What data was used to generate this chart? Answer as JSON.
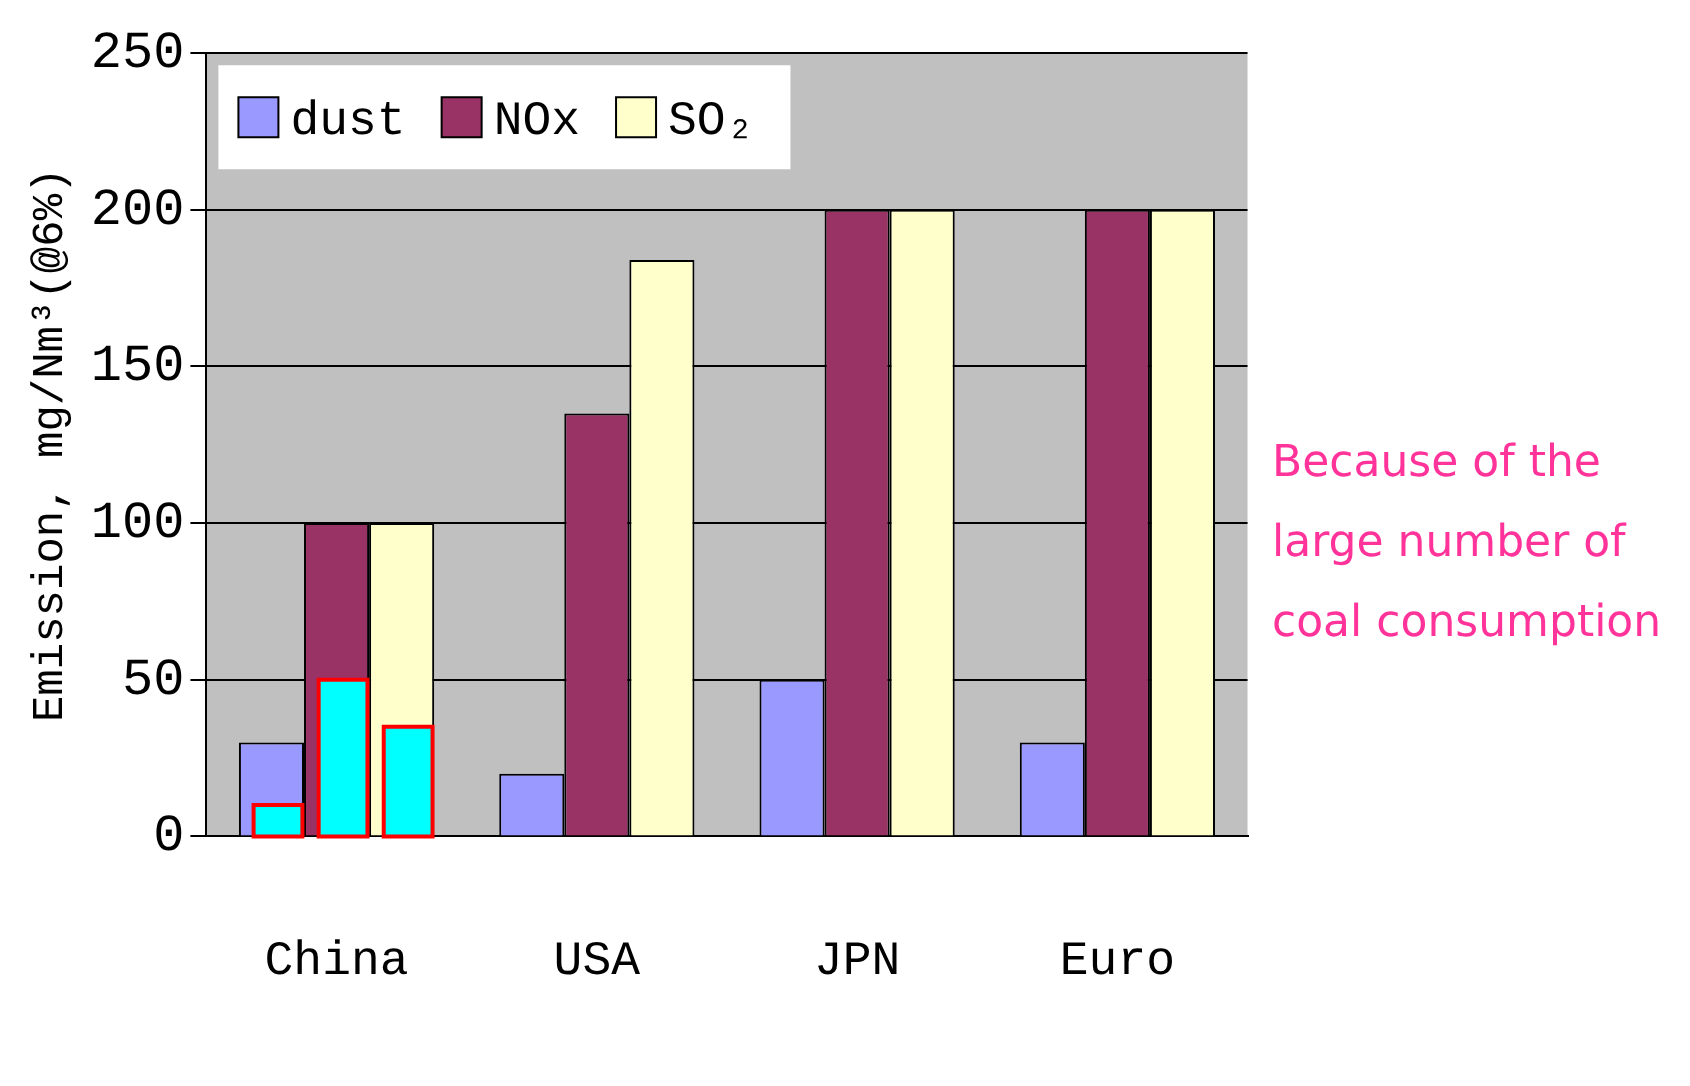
{
  "chart_data": {
    "type": "bar",
    "categories": [
      "China",
      "USA",
      "JPN",
      "Euro"
    ],
    "ylabel": "Emission, mg/Nm³(@6%)",
    "ylim": [
      0,
      250
    ],
    "yticks": [
      0,
      50,
      100,
      150,
      200,
      250
    ],
    "grid": "y",
    "legend": "top left",
    "series": [
      {
        "name": "dust",
        "color": "#9999ff",
        "values": [
          30,
          20,
          50,
          30
        ]
      },
      {
        "name": "NOx",
        "color": "#993366",
        "values": [
          100,
          135,
          200,
          200
        ]
      },
      {
        "name": "SO₂",
        "color": "#ffffcc",
        "values": [
          100,
          184,
          200,
          200
        ]
      },
      {
        "color": "#00ffff",
        "values": [
          10,
          null,
          null,
          null
        ]
      },
      {
        "color": "#00ffff",
        "values": [
          50,
          null,
          null,
          null
        ]
      },
      {
        "color": "#00ffff",
        "values": [
          35,
          null,
          null,
          null
        ]
      }
    ],
    "annotations": [
      "Because of the large number of coal consumption"
    ]
  }
}
